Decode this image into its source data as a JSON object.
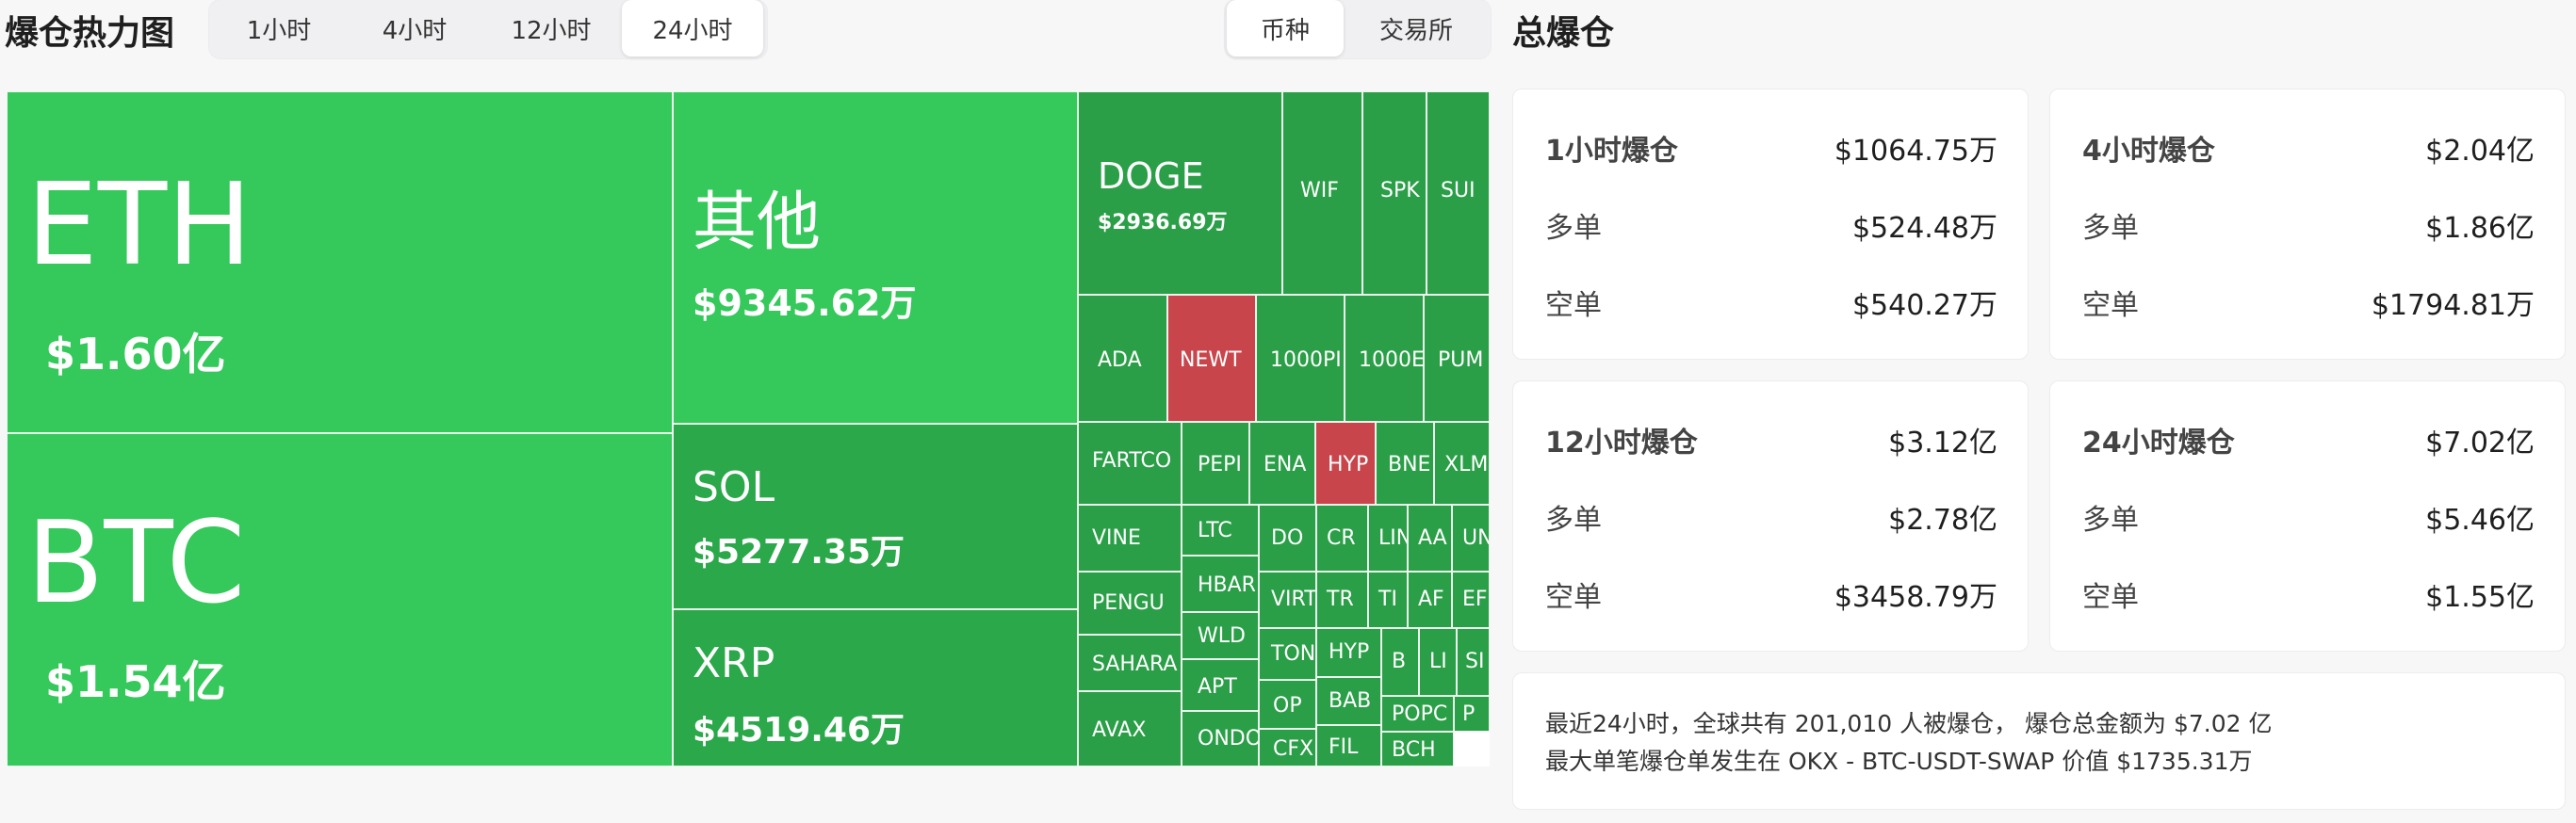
{
  "header": {
    "title": "爆仓热力图",
    "time_tabs": [
      {
        "label": "1小时",
        "active": false
      },
      {
        "label": "4小时",
        "active": false
      },
      {
        "label": "12小时",
        "active": false
      },
      {
        "label": "24小时",
        "active": true
      }
    ],
    "group_tabs": [
      {
        "label": "币种",
        "active": true
      },
      {
        "label": "交易所",
        "active": false
      }
    ],
    "summary_title": "总爆仓"
  },
  "colors": {
    "gain": "#2fcc55",
    "gain_dark": "#28a745",
    "loss": "#c8454b",
    "long": "#18a889",
    "short": "#e2344a"
  },
  "treemap": [
    {
      "name": "ETH",
      "value": "$1.60亿",
      "color": "#34c95a"
    },
    {
      "name": "BTC",
      "value": "$1.54亿",
      "color": "#34c95a"
    },
    {
      "name": "其他",
      "value": "$9345.62万",
      "color": "#34c95a"
    },
    {
      "name": "SOL",
      "value": "$5277.35万",
      "color": "#2aa84a"
    },
    {
      "name": "XRP",
      "value": "$4519.46万",
      "color": "#2aa84a"
    },
    {
      "name": "DOGE",
      "value": "$2936.69万",
      "color": "#2a9f47"
    },
    {
      "name": "WIF",
      "value": "",
      "color": "#2a9f47"
    },
    {
      "name": "SPK",
      "value": "",
      "color": "#2a9f47"
    },
    {
      "name": "SUI",
      "value": "",
      "color": "#2a9f47"
    },
    {
      "name": "ADA",
      "value": "",
      "color": "#2a9f47"
    },
    {
      "name": "NEWT",
      "value": "",
      "color": "#c8454b"
    },
    {
      "name": "1000PI",
      "value": "",
      "color": "#2a9f47"
    },
    {
      "name": "1000E",
      "value": "",
      "color": "#2a9f47"
    },
    {
      "name": "PUM",
      "value": "",
      "color": "#2a9f47"
    },
    {
      "name": "FARTCO",
      "value": "",
      "color": "#2a9f47"
    },
    {
      "name": "PEPI",
      "value": "",
      "color": "#2a9f47"
    },
    {
      "name": "ENA",
      "value": "",
      "color": "#2a9f47"
    },
    {
      "name": "HYP",
      "value": "",
      "color": "#c8454b"
    },
    {
      "name": "BNE",
      "value": "",
      "color": "#2a9f47"
    },
    {
      "name": "XLM",
      "value": "",
      "color": "#2a9f47"
    },
    {
      "name": "VINE",
      "value": "",
      "color": "#2a9f47"
    },
    {
      "name": "LTC",
      "value": "",
      "color": "#2a9f47"
    },
    {
      "name": "DO",
      "value": "",
      "color": "#2a9f47"
    },
    {
      "name": "CR",
      "value": "",
      "color": "#2a9f47"
    },
    {
      "name": "LIN",
      "value": "",
      "color": "#2a9f47"
    },
    {
      "name": "AA",
      "value": "",
      "color": "#2a9f47"
    },
    {
      "name": "UN",
      "value": "",
      "color": "#2a9f47"
    },
    {
      "name": "PENGU",
      "value": "",
      "color": "#2a9f47"
    },
    {
      "name": "HBAR",
      "value": "",
      "color": "#2a9f47"
    },
    {
      "name": "VIRT",
      "value": "",
      "color": "#2a9f47"
    },
    {
      "name": "TR",
      "value": "",
      "color": "#2a9f47"
    },
    {
      "name": "TI",
      "value": "",
      "color": "#2a9f47"
    },
    {
      "name": "AF",
      "value": "",
      "color": "#2a9f47"
    },
    {
      "name": "EF",
      "value": "",
      "color": "#2a9f47"
    },
    {
      "name": "SAHARA",
      "value": "",
      "color": "#2a9f47"
    },
    {
      "name": "WLD",
      "value": "",
      "color": "#2a9f47"
    },
    {
      "name": "TON",
      "value": "",
      "color": "#2a9f47"
    },
    {
      "name": "HYP",
      "value": "",
      "color": "#2a9f47"
    },
    {
      "name": "APT",
      "value": "",
      "color": "#2a9f47"
    },
    {
      "name": "OP",
      "value": "",
      "color": "#2a9f47"
    },
    {
      "name": "BAB",
      "value": "",
      "color": "#2a9f47"
    },
    {
      "name": "B",
      "value": "",
      "color": "#2a9f47"
    },
    {
      "name": "LI",
      "value": "",
      "color": "#2a9f47"
    },
    {
      "name": "SI",
      "value": "",
      "color": "#2a9f47"
    },
    {
      "name": "AVAX",
      "value": "",
      "color": "#2a9f47"
    },
    {
      "name": "ONDO",
      "value": "",
      "color": "#2a9f47"
    },
    {
      "name": "CFX",
      "value": "",
      "color": "#2a9f47"
    },
    {
      "name": "FIL",
      "value": "",
      "color": "#2a9f47"
    },
    {
      "name": "POPC",
      "value": "",
      "color": "#2a9f47"
    },
    {
      "name": "P",
      "value": "",
      "color": "#2a9f47"
    },
    {
      "name": "BCH",
      "value": "",
      "color": "#2a9f47"
    }
  ],
  "cards": [
    {
      "title": "1小时爆仓",
      "total": "$1064.75万",
      "long_label": "多单",
      "long": "$524.48万",
      "short_label": "空单",
      "short": "$540.27万"
    },
    {
      "title": "4小时爆仓",
      "total": "$2.04亿",
      "long_label": "多单",
      "long": "$1.86亿",
      "short_label": "空单",
      "short": "$1794.81万"
    },
    {
      "title": "12小时爆仓",
      "total": "$3.12亿",
      "long_label": "多单",
      "long": "$2.78亿",
      "short_label": "空单",
      "short": "$3458.79万"
    },
    {
      "title": "24小时爆仓",
      "total": "$7.02亿",
      "long_label": "多单",
      "long": "$5.46亿",
      "short_label": "空单",
      "short": "$1.55亿"
    }
  ],
  "summary": {
    "line1": "最近24小时，全球共有 201,010 人被爆仓，  爆仓总金额为 $7.02 亿",
    "line2": "最大单笔爆仓单发生在 OKX - BTC-USDT-SWAP 价值 $1735.31万"
  }
}
